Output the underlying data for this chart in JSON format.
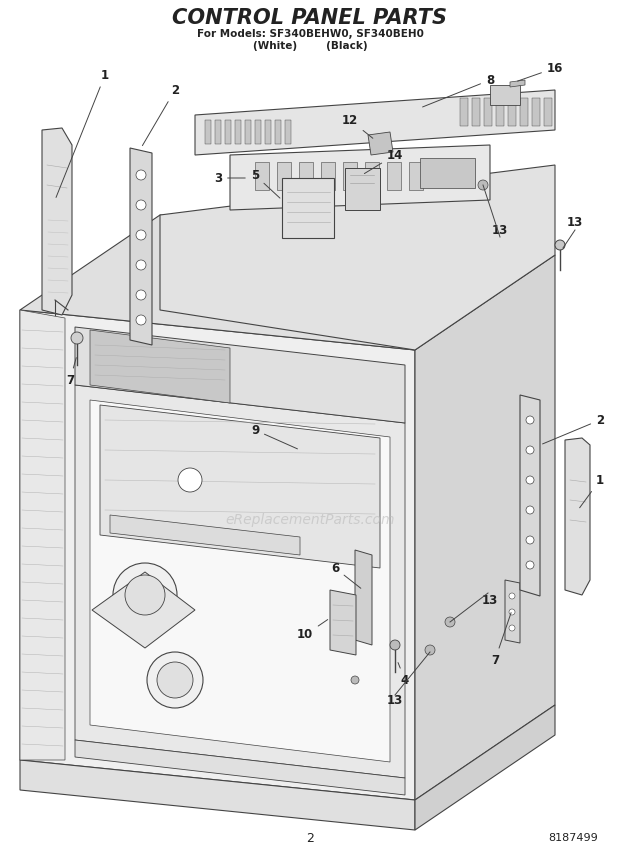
{
  "title": "CONTROL PANEL PARTS",
  "subtitle_line1": "For Models: SF340BEHW0, SF340BEH0",
  "subtitle_line2": "(White)        (Black)",
  "page_number": "2",
  "doc_number": "8187499",
  "background_color": "#ffffff",
  "line_color": "#444444",
  "light_line": "#666666",
  "fill_light": "#f5f5f5",
  "fill_mid": "#e8e8e8",
  "fill_dark": "#d8d8d8",
  "fill_darker": "#c8c8c8",
  "text_color": "#222222",
  "watermark_color": "#bbbbbb",
  "title_fontsize": 15,
  "subtitle_fontsize": 7.5,
  "label_fontsize": 8.5
}
